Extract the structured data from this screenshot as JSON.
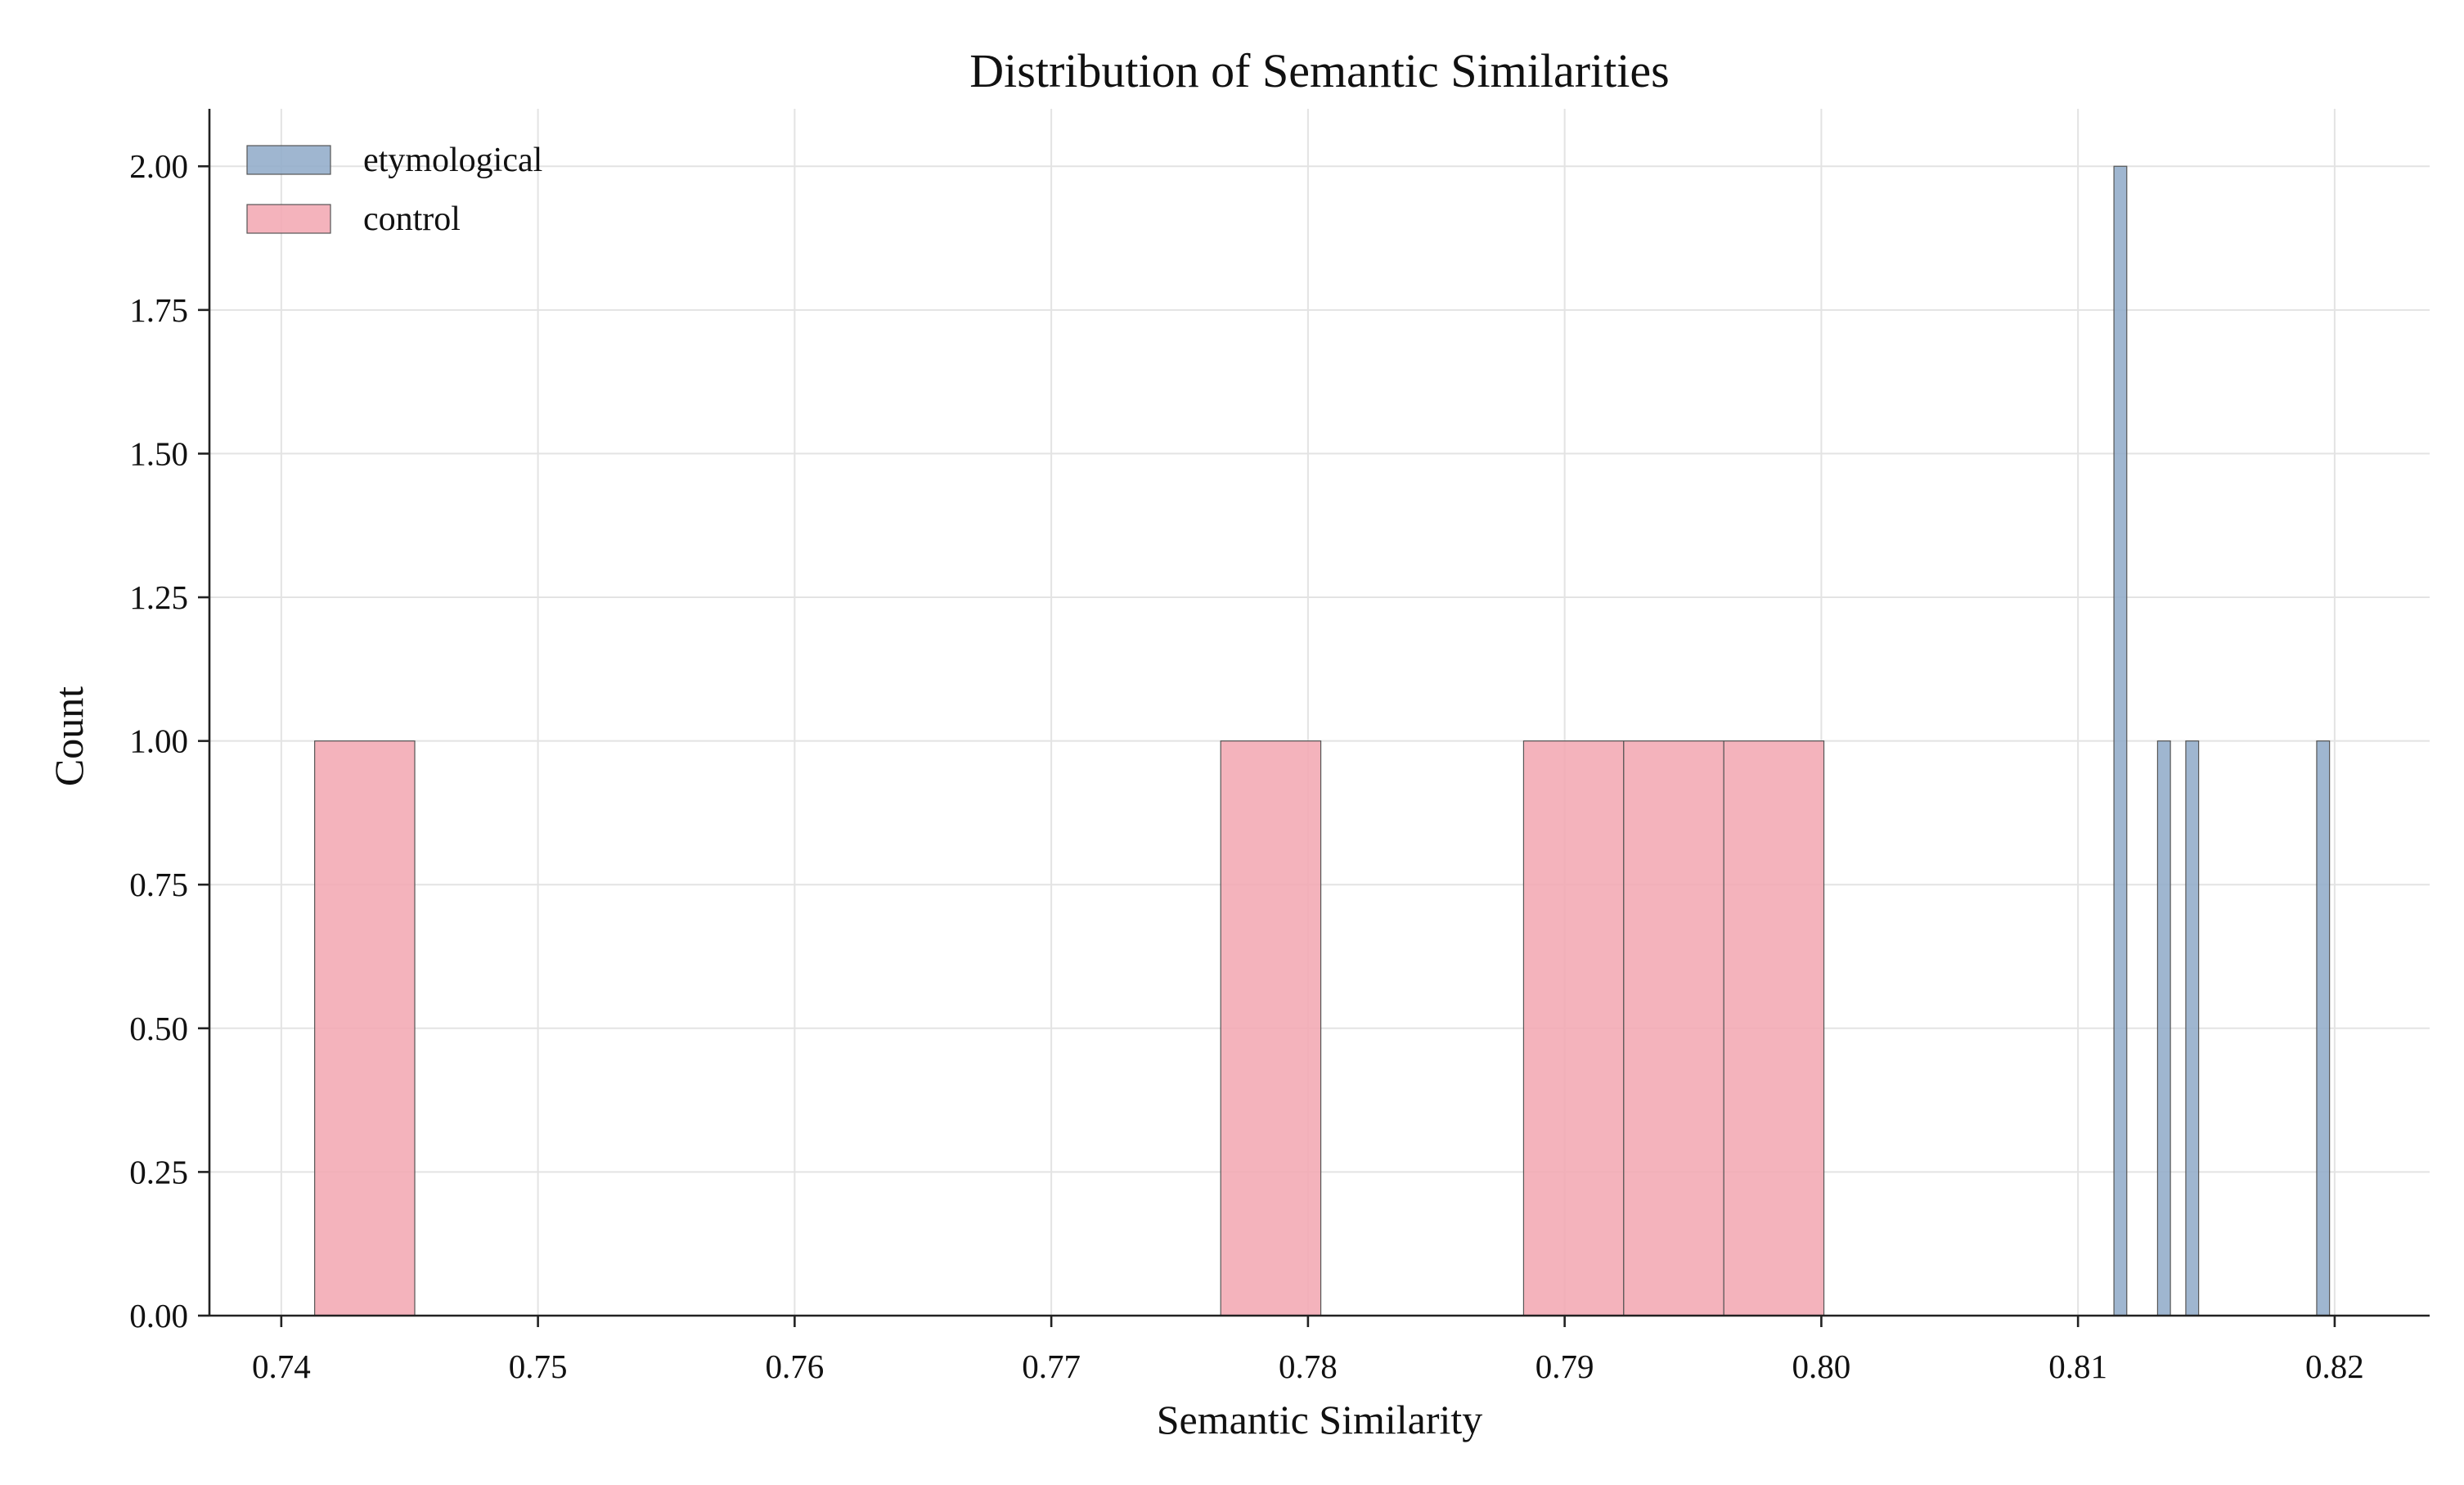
{
  "chart_data": {
    "type": "bar",
    "title": "Distribution of Semantic Similarities",
    "xlabel": "Semantic Similarity",
    "ylabel": "Count",
    "xlim": [
      0.7372,
      0.8237
    ],
    "ylim": [
      0,
      2.1
    ],
    "xticks": [
      0.74,
      0.75,
      0.76,
      0.77,
      0.78,
      0.79,
      0.8,
      0.81,
      0.82
    ],
    "xtick_labels": [
      "0.74",
      "0.75",
      "0.76",
      "0.77",
      "0.78",
      "0.79",
      "0.80",
      "0.81",
      "0.82"
    ],
    "yticks": [
      0,
      0.25,
      0.5,
      0.75,
      1.0,
      1.25,
      1.5,
      1.75,
      2.0
    ],
    "ytick_labels": [
      "0.00",
      "0.25",
      "0.50",
      "0.75",
      "1.00",
      "1.25",
      "1.50",
      "1.75",
      "2.00"
    ],
    "grid": true,
    "legend_position": "top-left",
    "series": [
      {
        "name": "etymological",
        "color": "#92acc9",
        "bins": [
          {
            "x0": 0.8114,
            "x1": 0.8119,
            "count": 2
          },
          {
            "x0": 0.8131,
            "x1": 0.8136,
            "count": 1
          },
          {
            "x0": 0.8142,
            "x1": 0.8147,
            "count": 1
          },
          {
            "x0": 0.8193,
            "x1": 0.8198,
            "count": 1
          }
        ]
      },
      {
        "name": "control",
        "color": "#f3a9b3",
        "bins": [
          {
            "x0": 0.7413,
            "x1": 0.7452,
            "count": 1
          },
          {
            "x0": 0.7766,
            "x1": 0.7805,
            "count": 1
          },
          {
            "x0": 0.7884,
            "x1": 0.7923,
            "count": 1
          },
          {
            "x0": 0.7923,
            "x1": 0.7962,
            "count": 1
          },
          {
            "x0": 0.7962,
            "x1": 0.8001,
            "count": 1
          }
        ]
      }
    ]
  }
}
